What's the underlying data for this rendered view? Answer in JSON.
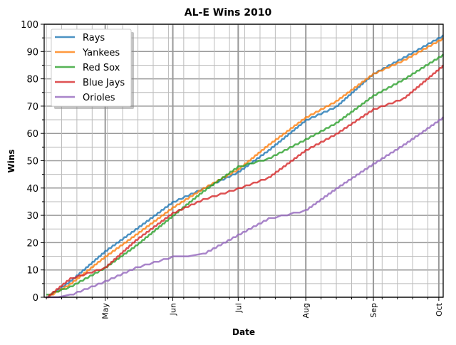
{
  "chart_data": {
    "type": "line",
    "title": "AL-E Wins 2010",
    "xlabel": "Date",
    "ylabel": "Wins",
    "ylim": [
      0,
      100
    ],
    "xlim": [
      "2010-04-03",
      "2010-10-03"
    ],
    "yticks": [
      0,
      10,
      20,
      30,
      40,
      50,
      60,
      70,
      80,
      90,
      100
    ],
    "xticks": [
      {
        "date": "2010-05-01",
        "label": "May"
      },
      {
        "date": "2010-06-01",
        "label": "Jun"
      },
      {
        "date": "2010-07-01",
        "label": "Jul"
      },
      {
        "date": "2010-08-01",
        "label": "Aug"
      },
      {
        "date": "2010-09-01",
        "label": "Sep"
      },
      {
        "date": "2010-10-01",
        "label": "Oct"
      }
    ],
    "grid": true,
    "legend_position": "top-left",
    "x": [
      "2010-04-04",
      "2010-04-15",
      "2010-05-01",
      "2010-05-15",
      "2010-06-01",
      "2010-06-15",
      "2010-07-01",
      "2010-07-15",
      "2010-08-01",
      "2010-08-15",
      "2010-09-01",
      "2010-09-15",
      "2010-10-03"
    ],
    "series": [
      {
        "name": "Rays",
        "color": "#1f77b4",
        "values": [
          0,
          6,
          17,
          25,
          35,
          40,
          46,
          54,
          65,
          70,
          82,
          88,
          96
        ]
      },
      {
        "name": "Yankees",
        "color": "#ff7f0e",
        "values": [
          0,
          5,
          15,
          23,
          33,
          40,
          47,
          56,
          66,
          72,
          82,
          87,
          95
        ]
      },
      {
        "name": "Red Sox",
        "color": "#2ca02c",
        "values": [
          1,
          4,
          11,
          19,
          30,
          39,
          48,
          51,
          58,
          64,
          74,
          80,
          89
        ]
      },
      {
        "name": "Blue Jays",
        "color": "#d62728",
        "values": [
          0,
          7,
          11,
          21,
          31,
          36,
          40,
          44,
          54,
          60,
          69,
          73,
          85
        ]
      },
      {
        "name": "Orioles",
        "color": "#9467bd",
        "values": [
          0,
          1,
          6,
          11,
          15,
          16,
          23,
          29,
          32,
          40,
          49,
          56,
          66
        ]
      }
    ]
  }
}
